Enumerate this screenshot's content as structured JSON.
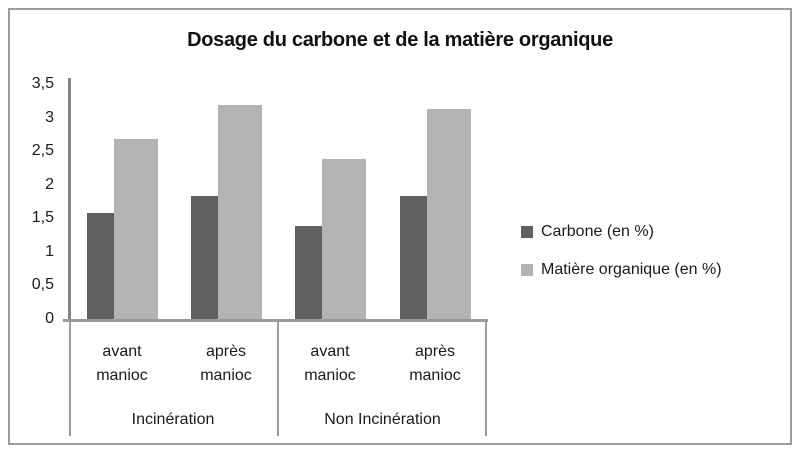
{
  "chart_data": {
    "type": "bar",
    "title": "Dosage du carbone et de la matière organique",
    "ylabel": "",
    "xlabel": "",
    "ylim": [
      0,
      3.5
    ],
    "grid": false,
    "legend_position": "right",
    "y_ticks": [
      {
        "label": "0",
        "value": 0
      },
      {
        "label": "0,5",
        "value": 0.5
      },
      {
        "label": "1",
        "value": 1
      },
      {
        "label": "1,5",
        "value": 1.5
      },
      {
        "label": "2",
        "value": 2
      },
      {
        "label": "2,5",
        "value": 2.5
      },
      {
        "label": "3",
        "value": 3
      },
      {
        "label": "3,5",
        "value": 3.5
      }
    ],
    "groups": [
      {
        "label": "Incinération",
        "categories": [
          "avant manioc",
          "après manioc"
        ]
      },
      {
        "label": "Non Incinération",
        "categories": [
          "avant manioc",
          "après manioc"
        ]
      }
    ],
    "series": [
      {
        "name": "Carbone (en %)",
        "color": "#606060",
        "values": [
          1.6,
          1.85,
          1.4,
          1.85
        ]
      },
      {
        "name": "Matière organique (en %)",
        "color": "#b3b3b3",
        "values": [
          2.7,
          3.2,
          2.4,
          3.15
        ]
      }
    ]
  }
}
